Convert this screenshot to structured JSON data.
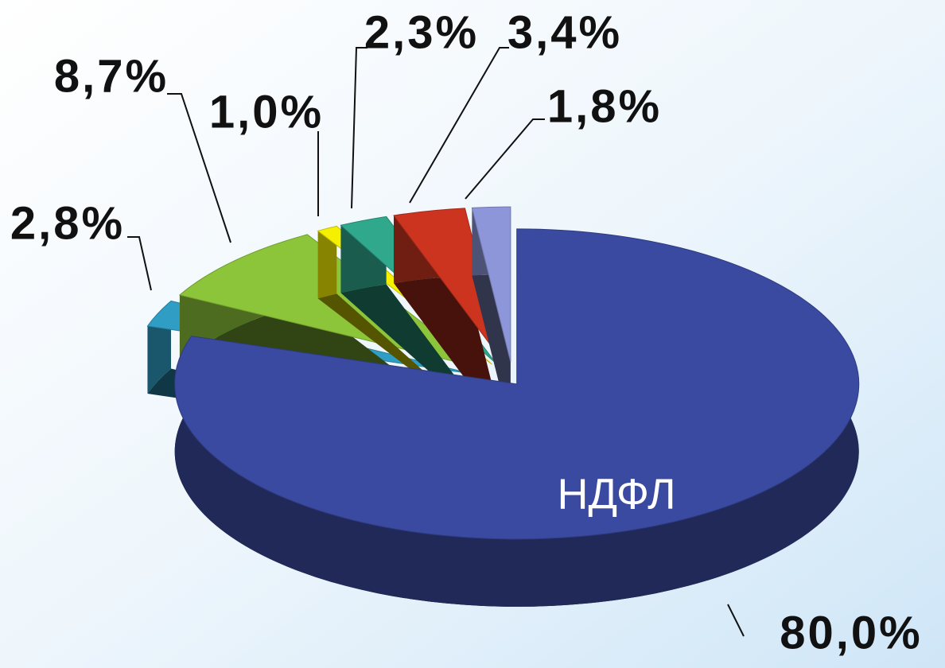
{
  "chart_data": {
    "type": "pie",
    "categories": [
      "НДФЛ",
      null,
      null,
      null,
      null,
      null,
      null
    ],
    "values": [
      80.0,
      2.8,
      8.7,
      1.0,
      2.3,
      3.4,
      1.8
    ],
    "value_labels": [
      "80,0%",
      "2,8%",
      "8,7%",
      "1,0%",
      "2,3%",
      "3,4%",
      "1,8%"
    ],
    "colors": [
      "#3a4aa0",
      "#2f9dc4",
      "#8cc43a",
      "#f4f000",
      "#2fa88c",
      "#cc3420",
      "#8c96d8"
    ]
  }
}
